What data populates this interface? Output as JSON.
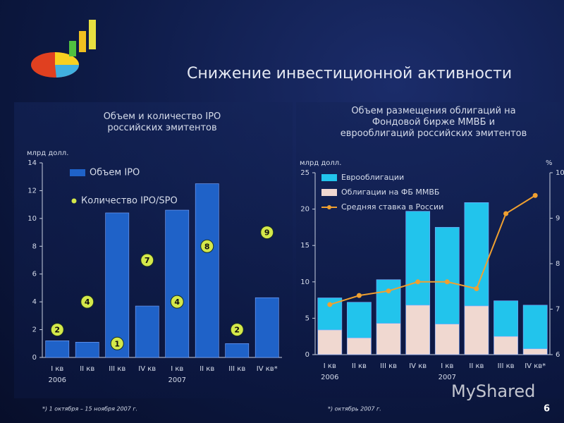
{
  "title": "Снижение инвестиционной активности",
  "page_number": "6",
  "watermark": "MyShared",
  "chart_data": [
    {
      "type": "bar",
      "title": "Объем и количество IPO российских эмитентов",
      "y_label": "млрд долл.",
      "note": "*) 1 октября – 15 ноября 2007 г.",
      "categories": [
        "I кв",
        "II кв",
        "III кв",
        "IV кв",
        "I кв",
        "II кв",
        "III кв",
        "IV кв*"
      ],
      "year_categories": [
        "2006",
        null,
        null,
        null,
        "2007",
        null,
        null,
        null
      ],
      "series": [
        {
          "name": "Объем IPO",
          "kind": "bar",
          "color": "#1f62c8",
          "values": [
            1.2,
            1.1,
            10.4,
            3.7,
            10.6,
            12.5,
            1.0,
            4.3
          ]
        },
        {
          "name": "Количество IPO/SPO",
          "kind": "marker",
          "color": "#d4e84a",
          "values": [
            2,
            4,
            1,
            7,
            4,
            8,
            2,
            9
          ]
        }
      ],
      "ylim": [
        0,
        14
      ],
      "yticks": [
        0,
        2,
        4,
        6,
        8,
        10,
        12,
        14
      ]
    },
    {
      "type": "bar",
      "stacked": true,
      "title": "Объем размещения облигаций на Фондовой бирже ММВБ и еврооблигаций российских эмитентов",
      "y_label": "млрд долл.",
      "y2_label": "%",
      "note": "*) октябрь 2007 г.",
      "categories": [
        "I кв",
        "II кв",
        "III кв",
        "IV кв",
        "I кв",
        "II кв",
        "III кв",
        "IV кв*"
      ],
      "year_categories": [
        "2006",
        null,
        null,
        null,
        "2007",
        null,
        null,
        null
      ],
      "series": [
        {
          "name": "Облигации на ФБ ММВБ",
          "kind": "bar",
          "color": "#f0d8d0",
          "values": [
            3.4,
            2.3,
            4.3,
            6.8,
            4.2,
            6.7,
            2.5,
            0.8
          ]
        },
        {
          "name": "Еврооблигации",
          "kind": "bar",
          "color": "#22c4ec",
          "values": [
            4.4,
            4.9,
            6.0,
            12.9,
            13.3,
            14.2,
            4.9,
            6.0
          ]
        },
        {
          "name": "Средняя ставка в России",
          "kind": "line",
          "axis": "y2",
          "color": "#f0a030",
          "values": [
            7.1,
            7.3,
            7.4,
            7.6,
            7.6,
            7.45,
            9.1,
            9.5
          ]
        }
      ],
      "legend_order": [
        1,
        0,
        2
      ],
      "ylim": [
        0,
        25
      ],
      "yticks": [
        0,
        5,
        10,
        15,
        20,
        25
      ],
      "y2lim": [
        6,
        10
      ],
      "y2ticks": [
        6,
        7,
        8,
        9,
        10
      ]
    }
  ]
}
